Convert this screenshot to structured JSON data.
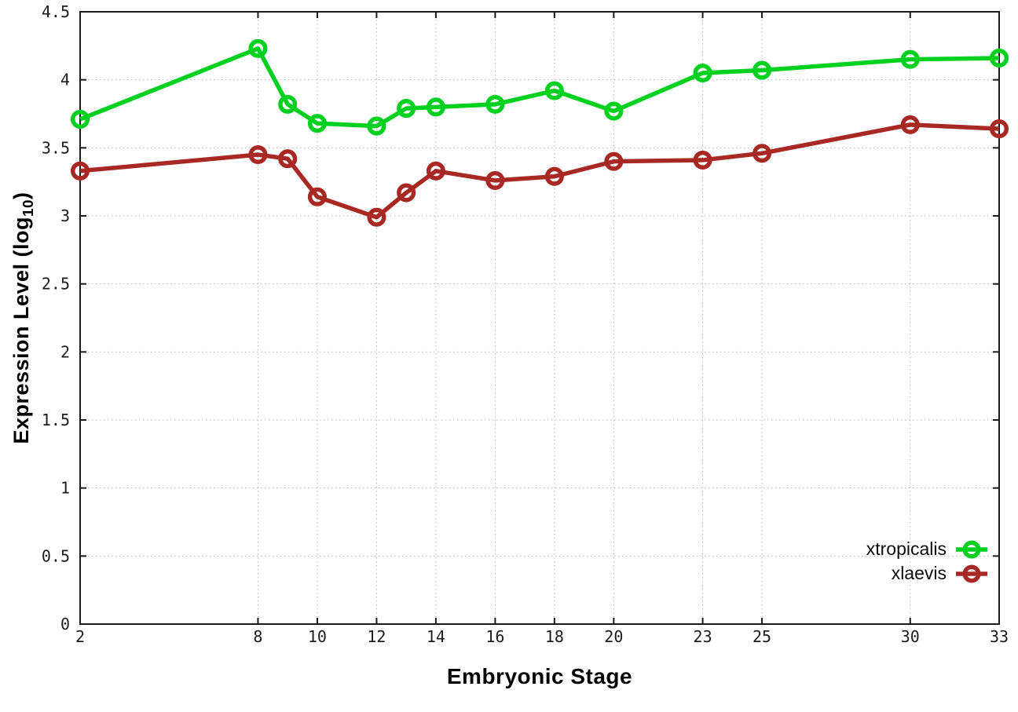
{
  "chart_data": {
    "type": "line",
    "title": "",
    "xlabel": "Embryonic Stage",
    "ylabel": "Expression Level (log10)",
    "ylabel_parts": {
      "prefix": "Expression Level (log",
      "subscript": "10",
      "suffix": ")"
    },
    "xlim": [
      2,
      33
    ],
    "ylim": [
      0,
      4.5
    ],
    "xticks": [
      2,
      8,
      10,
      12,
      14,
      16,
      18,
      20,
      23,
      25,
      30,
      33
    ],
    "yticks": [
      0,
      0.5,
      1,
      1.5,
      2,
      2.5,
      3,
      3.5,
      4,
      4.5
    ],
    "grid": true,
    "legend_position": "bottom-right",
    "x": [
      2,
      8,
      9,
      10,
      12,
      13,
      14,
      16,
      18,
      20,
      23,
      25,
      30,
      33
    ],
    "series": [
      {
        "name": "xtropicalis",
        "color": "#00d01f",
        "marker": "open-circle",
        "values": [
          3.71,
          4.23,
          3.82,
          3.68,
          3.66,
          3.79,
          3.8,
          3.82,
          3.92,
          3.77,
          4.05,
          4.07,
          4.15,
          4.16
        ]
      },
      {
        "name": "xlaevis",
        "color": "#a82823",
        "marker": "open-circle",
        "values": [
          3.33,
          3.45,
          3.42,
          3.14,
          2.99,
          3.17,
          3.33,
          3.26,
          3.29,
          3.4,
          3.41,
          3.46,
          3.67,
          3.64
        ]
      }
    ]
  },
  "colors": {
    "background": "#ffffff",
    "grid": "#b3b3b3",
    "axis": "#1a1a1a",
    "tick_label": "#1c1c1c"
  }
}
